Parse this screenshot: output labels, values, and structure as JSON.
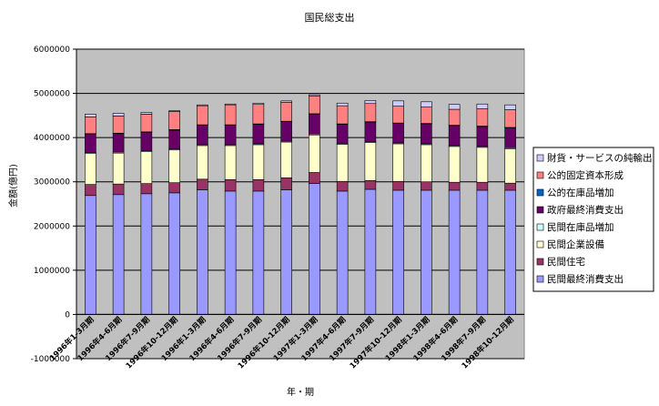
{
  "chart_data": {
    "type": "bar",
    "stacked": true,
    "title": "国民総支出",
    "xlabel": "年・期",
    "ylabel": "金額(億円)",
    "ylim": [
      -1000000,
      6000000
    ],
    "yticks": [
      -1000000,
      0,
      1000000,
      2000000,
      3000000,
      4000000,
      5000000,
      6000000
    ],
    "ytick_labels": [
      "-1000000",
      "0",
      "1000000",
      "2000000",
      "3000000",
      "4000000",
      "5000000",
      "6000000"
    ],
    "grid": "horizontal",
    "plot_background": "#c0c0c0",
    "legend_position": "right",
    "categories": [
      "1996年1-3月期",
      "1996年4-6月期",
      "1996年7-9月期",
      "1996年10-12月期",
      "1996年1-3月期",
      "1996年4-6月期",
      "1996年7-9月期",
      "1996年10-12月期",
      "1997年1-3月期",
      "1997年4-6月期",
      "1997年7-9月期",
      "1997年10-12月期",
      "1998年1-3月期",
      "1998年4-6月期",
      "1998年7-9月期",
      "1998年10-12月期"
    ],
    "series": [
      {
        "name": "民間最終消費支出",
        "color": "#9999ff",
        "values": [
          2690000,
          2710000,
          2730000,
          2750000,
          2820000,
          2790000,
          2790000,
          2820000,
          2960000,
          2790000,
          2830000,
          2810000,
          2810000,
          2810000,
          2810000,
          2810000
        ]
      },
      {
        "name": "民間住宅",
        "color": "#993366",
        "values": [
          250000,
          240000,
          230000,
          230000,
          240000,
          260000,
          260000,
          270000,
          250000,
          220000,
          200000,
          200000,
          190000,
          180000,
          180000,
          160000
        ]
      },
      {
        "name": "民間企業設備",
        "color": "#ffffcc",
        "values": [
          700000,
          700000,
          720000,
          740000,
          760000,
          770000,
          790000,
          810000,
          850000,
          840000,
          860000,
          850000,
          840000,
          810000,
          790000,
          780000
        ]
      },
      {
        "name": "民間在庫品増加",
        "color": "#ccffff",
        "values": [
          20000,
          20000,
          20000,
          20000,
          20000,
          20000,
          20000,
          20000,
          20000,
          20000,
          20000,
          20000,
          20000,
          20000,
          20000,
          20000
        ]
      },
      {
        "name": "政府最終消費支出",
        "color": "#660066",
        "values": [
          420000,
          420000,
          420000,
          430000,
          440000,
          440000,
          440000,
          440000,
          450000,
          430000,
          440000,
          440000,
          450000,
          450000,
          450000,
          450000
        ]
      },
      {
        "name": "公的在庫品増加",
        "color": "#0066cc",
        "values": [
          10000,
          10000,
          10000,
          10000,
          10000,
          10000,
          10000,
          10000,
          10000,
          10000,
          10000,
          10000,
          10000,
          10000,
          10000,
          10000
        ]
      },
      {
        "name": "公的固定資本形成",
        "color": "#ff8080",
        "values": [
          380000,
          390000,
          400000,
          410000,
          430000,
          450000,
          440000,
          430000,
          400000,
          410000,
          410000,
          380000,
          370000,
          360000,
          390000,
          400000
        ]
      },
      {
        "name": "財貨・サービスの純輸出",
        "color": "#ccccff",
        "values": [
          60000,
          60000,
          40000,
          20000,
          20000,
          20000,
          30000,
          30000,
          30000,
          60000,
          70000,
          120000,
          120000,
          110000,
          110000,
          110000
        ]
      }
    ]
  }
}
